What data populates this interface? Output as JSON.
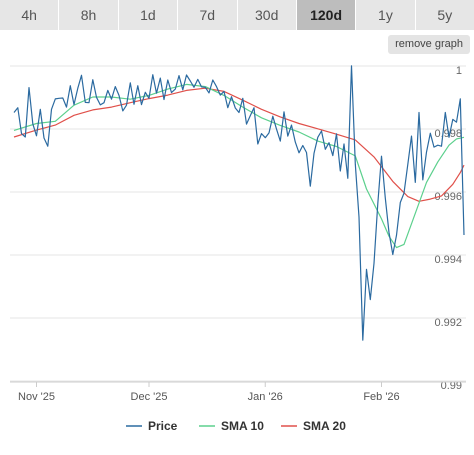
{
  "tabs": [
    {
      "label": "4h",
      "active": false
    },
    {
      "label": "8h",
      "active": false
    },
    {
      "label": "1d",
      "active": false
    },
    {
      "label": "7d",
      "active": false
    },
    {
      "label": "30d",
      "active": false
    },
    {
      "label": "120d",
      "active": true
    },
    {
      "label": "1y",
      "active": false
    },
    {
      "label": "5y",
      "active": false
    }
  ],
  "remove_graph_label": "remove graph",
  "chart_data": {
    "type": "line",
    "title": "",
    "xlabel": "",
    "ylabel": "",
    "x_range": [
      "2025-10-26",
      "2026-02-23"
    ],
    "ylim": [
      0.99,
      1.0
    ],
    "y_ticks": [
      {
        "value": 1.0,
        "label": "1"
      },
      {
        "value": 0.998,
        "label": "0.998"
      },
      {
        "value": 0.996,
        "label": "0.996"
      },
      {
        "value": 0.994,
        "label": "0.994"
      },
      {
        "value": 0.992,
        "label": "0.992"
      },
      {
        "value": 0.99,
        "label": "0.99"
      }
    ],
    "x_ticks": [
      {
        "date": "2025-11-01",
        "label": "Nov '25"
      },
      {
        "date": "2025-12-01",
        "label": "Dec '25"
      },
      {
        "date": "2026-01-01",
        "label": "Jan '26"
      },
      {
        "date": "2026-02-01",
        "label": "Feb '26"
      }
    ],
    "grid": true,
    "legend_position": "bottom",
    "series": [
      {
        "name": "Price",
        "color": "#2b6aa0",
        "points": [
          [
            "2025-10-26",
            0.99843
          ],
          [
            "2025-10-27",
            0.99858
          ],
          [
            "2025-10-28",
            0.99776
          ],
          [
            "2025-10-29",
            0.99765
          ],
          [
            "2025-10-30",
            0.99922
          ],
          [
            "2025-10-31",
            0.99807
          ],
          [
            "2025-11-01",
            0.99769
          ],
          [
            "2025-11-02",
            0.99853
          ],
          [
            "2025-11-03",
            0.99762
          ],
          [
            "2025-11-04",
            0.99736
          ],
          [
            "2025-11-05",
            0.99853
          ],
          [
            "2025-11-06",
            0.99886
          ],
          [
            "2025-11-07",
            0.99888
          ],
          [
            "2025-11-08",
            0.99889
          ],
          [
            "2025-11-09",
            0.9986
          ],
          [
            "2025-11-10",
            0.99928
          ],
          [
            "2025-11-11",
            0.99868
          ],
          [
            "2025-11-12",
            0.9992
          ],
          [
            "2025-11-13",
            0.99961
          ],
          [
            "2025-11-14",
            0.99875
          ],
          [
            "2025-11-15",
            0.99874
          ],
          [
            "2025-11-16",
            0.99947
          ],
          [
            "2025-11-17",
            0.99891
          ],
          [
            "2025-11-18",
            0.99867
          ],
          [
            "2025-11-19",
            0.99874
          ],
          [
            "2025-11-20",
            0.99913
          ],
          [
            "2025-11-21",
            0.99885
          ],
          [
            "2025-11-22",
            0.99925
          ],
          [
            "2025-11-23",
            0.99897
          ],
          [
            "2025-11-24",
            0.99848
          ],
          [
            "2025-11-25",
            0.99866
          ],
          [
            "2025-11-26",
            0.99937
          ],
          [
            "2025-11-27",
            0.99869
          ],
          [
            "2025-11-28",
            0.99928
          ],
          [
            "2025-11-29",
            0.99868
          ],
          [
            "2025-11-30",
            0.99907
          ],
          [
            "2025-12-01",
            0.99888
          ],
          [
            "2025-12-02",
            0.99963
          ],
          [
            "2025-12-03",
            0.99904
          ],
          [
            "2025-12-04",
            0.99952
          ],
          [
            "2025-12-05",
            0.99884
          ],
          [
            "2025-12-06",
            0.99946
          ],
          [
            "2025-12-07",
            0.99906
          ],
          [
            "2025-12-08",
            0.99917
          ],
          [
            "2025-12-09",
            0.9996
          ],
          [
            "2025-12-10",
            0.99915
          ],
          [
            "2025-12-11",
            0.99962
          ],
          [
            "2025-12-12",
            0.99943
          ],
          [
            "2025-12-13",
            0.99923
          ],
          [
            "2025-12-14",
            0.99948
          ],
          [
            "2025-12-15",
            0.99924
          ],
          [
            "2025-12-16",
            0.99923
          ],
          [
            "2025-12-17",
            0.99905
          ],
          [
            "2025-12-18",
            0.99946
          ],
          [
            "2025-12-19",
            0.99925
          ],
          [
            "2025-12-20",
            0.99898
          ],
          [
            "2025-12-21",
            0.9991
          ],
          [
            "2025-12-22",
            0.99858
          ],
          [
            "2025-12-23",
            0.99893
          ],
          [
            "2025-12-24",
            0.99857
          ],
          [
            "2025-12-25",
            0.99843
          ],
          [
            "2025-12-26",
            0.99888
          ],
          [
            "2025-12-27",
            0.99806
          ],
          [
            "2025-12-28",
            0.99833
          ],
          [
            "2025-12-29",
            0.99858
          ],
          [
            "2025-12-30",
            0.99743
          ],
          [
            "2025-12-31",
            0.99776
          ],
          [
            "2026-01-01",
            0.99763
          ],
          [
            "2026-01-02",
            0.99778
          ],
          [
            "2026-01-03",
            0.99831
          ],
          [
            "2026-01-04",
            0.9979
          ],
          [
            "2026-01-05",
            0.99752
          ],
          [
            "2026-01-06",
            0.99845
          ],
          [
            "2026-01-07",
            0.99768
          ],
          [
            "2026-01-08",
            0.99803
          ],
          [
            "2026-01-09",
            0.99749
          ],
          [
            "2026-01-10",
            0.99715
          ],
          [
            "2026-01-11",
            0.99738
          ],
          [
            "2026-01-12",
            0.99716
          ],
          [
            "2026-01-13",
            0.99609
          ],
          [
            "2026-01-14",
            0.99713
          ],
          [
            "2026-01-15",
            0.99764
          ],
          [
            "2026-01-16",
            0.99784
          ],
          [
            "2026-01-17",
            0.99726
          ],
          [
            "2026-01-18",
            0.99747
          ],
          [
            "2026-01-19",
            0.99706
          ],
          [
            "2026-01-20",
            0.99775
          ],
          [
            "2026-01-21",
            0.99657
          ],
          [
            "2026-01-22",
            0.99743
          ],
          [
            "2026-01-23",
            0.99634
          ],
          [
            "2026-01-24",
            0.99991
          ],
          [
            "2026-01-25",
            0.99679
          ],
          [
            "2026-01-26",
            0.99511
          ],
          [
            "2026-01-27",
            0.9912
          ],
          [
            "2026-01-28",
            0.99345
          ],
          [
            "2026-01-29",
            0.99249
          ],
          [
            "2026-01-30",
            0.99364
          ],
          [
            "2026-01-31",
            0.99554
          ],
          [
            "2026-02-01",
            0.99704
          ],
          [
            "2026-02-02",
            0.99571
          ],
          [
            "2026-02-03",
            0.99462
          ],
          [
            "2026-02-04",
            0.99392
          ],
          [
            "2026-02-05",
            0.99453
          ],
          [
            "2026-02-06",
            0.99557
          ],
          [
            "2026-02-07",
            0.99587
          ],
          [
            "2026-02-08",
            0.99678
          ],
          [
            "2026-02-09",
            0.99768
          ],
          [
            "2026-02-10",
            0.99621
          ],
          [
            "2026-02-11",
            0.99843
          ],
          [
            "2026-02-12",
            0.99629
          ],
          [
            "2026-02-13",
            0.99717
          ],
          [
            "2026-02-14",
            0.99777
          ],
          [
            "2026-02-15",
            0.99733
          ],
          [
            "2026-02-16",
            0.99739
          ],
          [
            "2026-02-17",
            0.99736
          ],
          [
            "2026-02-18",
            0.99843
          ],
          [
            "2026-02-19",
            0.99764
          ],
          [
            "2026-02-20",
            0.99821
          ],
          [
            "2026-02-21",
            0.99812
          ],
          [
            "2026-02-22",
            0.99886
          ],
          [
            "2026-02-23",
            0.99454
          ]
        ]
      },
      {
        "name": "SMA 10",
        "color": "#5cd08d",
        "points": [
          [
            "2025-10-26",
            0.99786
          ],
          [
            "2025-11-01",
            0.99808
          ],
          [
            "2025-11-06",
            0.99815
          ],
          [
            "2025-11-11",
            0.99866
          ],
          [
            "2025-11-16",
            0.99892
          ],
          [
            "2025-11-21",
            0.99892
          ],
          [
            "2025-11-26",
            0.99885
          ],
          [
            "2025-12-01",
            0.99897
          ],
          [
            "2025-12-06",
            0.99917
          ],
          [
            "2025-12-11",
            0.99932
          ],
          [
            "2025-12-16",
            0.99925
          ],
          [
            "2025-12-21",
            0.99897
          ],
          [
            "2025-12-26",
            0.9986
          ],
          [
            "2025-12-31",
            0.99826
          ],
          [
            "2026-01-05",
            0.99802
          ],
          [
            "2026-01-10",
            0.99781
          ],
          [
            "2026-01-15",
            0.99752
          ],
          [
            "2026-01-20",
            0.99735
          ],
          [
            "2026-01-25",
            0.99705
          ],
          [
            "2026-01-28",
            0.996
          ],
          [
            "2026-02-01",
            0.99505
          ],
          [
            "2026-02-03",
            0.9945
          ],
          [
            "2026-02-05",
            0.99414
          ],
          [
            "2026-02-07",
            0.99424
          ],
          [
            "2026-02-10",
            0.99523
          ],
          [
            "2026-02-13",
            0.99621
          ],
          [
            "2026-02-16",
            0.99686
          ],
          [
            "2026-02-19",
            0.99739
          ],
          [
            "2026-02-21",
            0.99759
          ],
          [
            "2026-02-23",
            0.99764
          ]
        ]
      },
      {
        "name": "SMA 20",
        "color": "#e0504a",
        "points": [
          [
            "2025-10-26",
            0.99765
          ],
          [
            "2025-11-01",
            0.99787
          ],
          [
            "2025-11-06",
            0.99803
          ],
          [
            "2025-11-11",
            0.99834
          ],
          [
            "2025-11-16",
            0.99851
          ],
          [
            "2025-11-21",
            0.9986
          ],
          [
            "2025-11-26",
            0.99874
          ],
          [
            "2025-12-01",
            0.99887
          ],
          [
            "2025-12-06",
            0.99898
          ],
          [
            "2025-12-11",
            0.99913
          ],
          [
            "2025-12-16",
            0.9992
          ],
          [
            "2025-12-21",
            0.9991
          ],
          [
            "2025-12-26",
            0.99882
          ],
          [
            "2025-12-31",
            0.99853
          ],
          [
            "2026-01-05",
            0.99829
          ],
          [
            "2026-01-10",
            0.99808
          ],
          [
            "2026-01-15",
            0.99791
          ],
          [
            "2026-01-20",
            0.99774
          ],
          [
            "2026-01-25",
            0.99756
          ],
          [
            "2026-01-30",
            0.99702
          ],
          [
            "2026-02-04",
            0.99624
          ],
          [
            "2026-02-08",
            0.99576
          ],
          [
            "2026-02-11",
            0.99561
          ],
          [
            "2026-02-14",
            0.99568
          ],
          [
            "2026-02-17",
            0.99578
          ],
          [
            "2026-02-20",
            0.99615
          ],
          [
            "2026-02-22",
            0.99652
          ],
          [
            "2026-02-23",
            0.99676
          ]
        ]
      }
    ]
  }
}
